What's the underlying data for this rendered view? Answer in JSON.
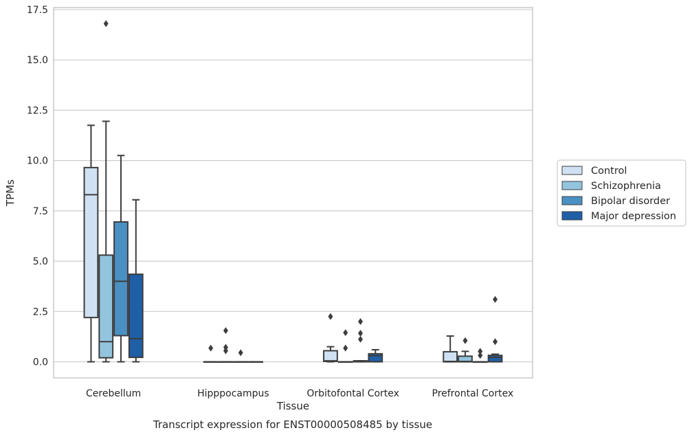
{
  "chart_data": {
    "type": "box",
    "title": "Transcript expression for ENST00000508485 by tissue",
    "xlabel": "Tissue",
    "ylabel": "TPMs",
    "ylim": [
      -0.8,
      17.6
    ],
    "yticks": [
      "0.0",
      "2.5",
      "5.0",
      "7.5",
      "10.0",
      "12.5",
      "15.0",
      "17.5"
    ],
    "ytick_values": [
      0,
      2.5,
      5,
      7.5,
      10,
      12.5,
      15,
      17.5
    ],
    "grid": "horizontal",
    "legend_position": "right",
    "categories": [
      "Cerebellum",
      "Hipppocampus",
      "Orbitofontal Cortex",
      "Prefrontal Cortex"
    ],
    "series": [
      {
        "name": "Control",
        "color": "#cfe1f2",
        "boxes": [
          {
            "q1": 2.2,
            "median": 8.3,
            "q3": 9.65,
            "whisker_low": 0.0,
            "whisker_high": 11.75,
            "outliers": []
          },
          {
            "q1": 0.0,
            "median": 0.0,
            "q3": 0.0,
            "whisker_low": 0.0,
            "whisker_high": 0.0,
            "outliers": [
              0.68
            ]
          },
          {
            "q1": 0.02,
            "median": 0.05,
            "q3": 0.55,
            "whisker_low": 0.0,
            "whisker_high": 0.75,
            "outliers": [
              2.25
            ]
          },
          {
            "q1": 0.0,
            "median": 0.02,
            "q3": 0.5,
            "whisker_low": 0.0,
            "whisker_high": 1.28,
            "outliers": []
          }
        ]
      },
      {
        "name": "Schizophrenia",
        "color": "#93c4de",
        "boxes": [
          {
            "q1": 0.2,
            "median": 1.0,
            "q3": 5.3,
            "whisker_low": 0.0,
            "whisker_high": 11.95,
            "outliers": [
              16.8
            ]
          },
          {
            "q1": 0.0,
            "median": 0.0,
            "q3": 0.0,
            "whisker_low": 0.0,
            "whisker_high": 0.0,
            "outliers": [
              0.55,
              0.72,
              1.55
            ]
          },
          {
            "q1": 0.0,
            "median": 0.0,
            "q3": 0.0,
            "whisker_low": 0.0,
            "whisker_high": 0.0,
            "outliers": [
              0.68,
              1.45
            ]
          },
          {
            "q1": 0.0,
            "median": 0.02,
            "q3": 0.28,
            "whisker_low": 0.0,
            "whisker_high": 0.52,
            "outliers": [
              1.05
            ]
          }
        ]
      },
      {
        "name": "Bipolar disorder",
        "color": "#4a90c2",
        "boxes": [
          {
            "q1": 1.3,
            "median": 4.0,
            "q3": 6.95,
            "whisker_low": 0.0,
            "whisker_high": 10.25,
            "outliers": []
          },
          {
            "q1": 0.0,
            "median": 0.0,
            "q3": 0.0,
            "whisker_low": 0.0,
            "whisker_high": 0.0,
            "outliers": [
              0.45
            ]
          },
          {
            "q1": 0.0,
            "median": 0.02,
            "q3": 0.05,
            "whisker_low": 0.0,
            "whisker_high": 0.05,
            "outliers": [
              1.12,
              1.42,
              2.0
            ]
          },
          {
            "q1": 0.0,
            "median": 0.0,
            "q3": 0.0,
            "whisker_low": 0.0,
            "whisker_high": 0.0,
            "outliers": [
              0.32,
              0.52
            ]
          }
        ]
      },
      {
        "name": "Major depression",
        "color": "#1f5fa6",
        "boxes": [
          {
            "q1": 0.22,
            "median": 1.15,
            "q3": 4.35,
            "whisker_low": 0.0,
            "whisker_high": 8.05,
            "outliers": []
          },
          {
            "q1": 0.0,
            "median": 0.0,
            "q3": 0.0,
            "whisker_low": 0.0,
            "whisker_high": 0.0,
            "outliers": []
          },
          {
            "q1": 0.0,
            "median": 0.3,
            "q3": 0.4,
            "whisker_low": 0.0,
            "whisker_high": 0.6,
            "outliers": []
          },
          {
            "q1": 0.0,
            "median": 0.22,
            "q3": 0.32,
            "whisker_low": 0.0,
            "whisker_high": 0.38,
            "outliers": [
              1.0,
              3.1
            ]
          }
        ]
      }
    ]
  }
}
